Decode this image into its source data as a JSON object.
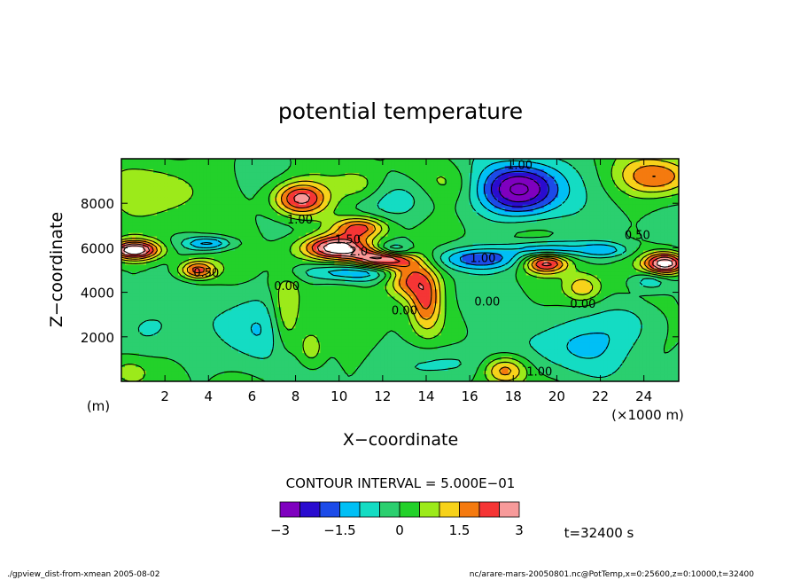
{
  "chart_data": {
    "type": "heatmap",
    "title": "potential temperature",
    "xlabel": "X−coordinate",
    "ylabel": "Z−coordinate",
    "x_unit": "(×1000 m)",
    "y_unit": "(m)",
    "xlim": [
      0,
      25.6
    ],
    "ylim": [
      0,
      10000
    ],
    "x_ticks": [
      2,
      4,
      6,
      8,
      10,
      12,
      14,
      16,
      18,
      20,
      22,
      24
    ],
    "y_ticks": [
      2000,
      4000,
      6000,
      8000
    ],
    "contour_interval_label": "CONTOUR INTERVAL = 5.000E−01",
    "colorbar": {
      "levels": [
        -3,
        -2.5,
        -2,
        -1.5,
        -1,
        -0.5,
        0,
        0.5,
        1,
        1.5,
        2,
        2.5,
        3
      ],
      "colors": [
        "#7f00bf",
        "#2a0ccf",
        "#1c4be8",
        "#00bff5",
        "#14dcc3",
        "#2bcf6f",
        "#23d12a",
        "#9cea1a",
        "#f7d21a",
        "#f47a0f",
        "#f53535",
        "#f79a9a"
      ],
      "tick_labels": [
        "−3",
        "−1.5",
        "0",
        "1.5",
        "3"
      ],
      "tick_values": [
        -3,
        -1.5,
        0,
        1.5,
        3
      ]
    },
    "time_label": "t=32400 s",
    "contour_labels": [
      {
        "text": "1.00",
        "x": 18.3,
        "y": 9550
      },
      {
        "text": "1.00",
        "x": 8.2,
        "y": 7100
      },
      {
        "text": "1.50",
        "x": 10.4,
        "y": 6200
      },
      {
        "text": "2.0",
        "x": 10.9,
        "y": 5650
      },
      {
        "text": "1.00",
        "x": 16.6,
        "y": 5350
      },
      {
        "text": "0.50",
        "x": 3.9,
        "y": 4700
      },
      {
        "text": "0.00",
        "x": 7.6,
        "y": 4100
      },
      {
        "text": "0.00",
        "x": 13.0,
        "y": 3000
      },
      {
        "text": "0.00",
        "x": 16.8,
        "y": 3400
      },
      {
        "text": "0.00",
        "x": 21.2,
        "y": 3300
      },
      {
        "text": "0.50",
        "x": 23.7,
        "y": 6400
      },
      {
        "text": "1.00",
        "x": 19.2,
        "y": 250
      }
    ],
    "features": [
      {
        "x": 18.3,
        "y": 8600,
        "value": -3.2,
        "sx": 1.3,
        "sy": 850
      },
      {
        "x": 16.5,
        "y": 5500,
        "value": -1.8,
        "sx": 1.5,
        "sy": 350
      },
      {
        "x": 19.5,
        "y": 5950,
        "value": -1.6,
        "sx": 1.2,
        "sy": 250
      },
      {
        "x": 4.0,
        "y": 6200,
        "value": -1.8,
        "sx": 0.8,
        "sy": 220
      },
      {
        "x": 10.5,
        "y": 4900,
        "value": -1.6,
        "sx": 1.6,
        "sy": 300
      },
      {
        "x": 12.5,
        "y": 5900,
        "value": -1.6,
        "sx": 0.6,
        "sy": 220
      },
      {
        "x": 22.2,
        "y": 5900,
        "value": -1.3,
        "sx": 0.8,
        "sy": 240
      },
      {
        "x": 24.3,
        "y": 4500,
        "value": -1.1,
        "sx": 0.6,
        "sy": 300
      },
      {
        "x": 6.2,
        "y": 2400,
        "value": -1.0,
        "sx": 1.3,
        "sy": 1200
      },
      {
        "x": 15.0,
        "y": 800,
        "value": -0.9,
        "sx": 1.4,
        "sy": 600
      },
      {
        "x": 20.6,
        "y": 1500,
        "value": -0.9,
        "sx": 1.7,
        "sy": 900
      },
      {
        "x": 23.4,
        "y": 2700,
        "value": -0.8,
        "sx": 1.0,
        "sy": 800
      },
      {
        "x": 1.0,
        "y": 2200,
        "value": -0.8,
        "sx": 1.0,
        "sy": 900
      },
      {
        "x": 13.0,
        "y": 8200,
        "value": -0.9,
        "sx": 1.2,
        "sy": 700
      },
      {
        "x": 8.2,
        "y": 8200,
        "value": 2.9,
        "sx": 0.9,
        "sy": 550
      },
      {
        "x": 11.0,
        "y": 6900,
        "value": 2.4,
        "sx": 0.9,
        "sy": 350
      },
      {
        "x": 9.9,
        "y": 6000,
        "value": 3.4,
        "sx": 1.1,
        "sy": 380
      },
      {
        "x": 11.9,
        "y": 5500,
        "value": 3.2,
        "sx": 0.9,
        "sy": 300
      },
      {
        "x": 13.2,
        "y": 4700,
        "value": 2.3,
        "sx": 0.8,
        "sy": 700
      },
      {
        "x": 14.0,
        "y": 3500,
        "value": 1.8,
        "sx": 0.5,
        "sy": 900
      },
      {
        "x": 0.6,
        "y": 5900,
        "value": 3.6,
        "sx": 0.8,
        "sy": 300
      },
      {
        "x": 3.5,
        "y": 5000,
        "value": 2.4,
        "sx": 0.6,
        "sy": 300
      },
      {
        "x": 19.5,
        "y": 5300,
        "value": 2.6,
        "sx": 0.7,
        "sy": 300
      },
      {
        "x": 25.0,
        "y": 5300,
        "value": 3.6,
        "sx": 0.7,
        "sy": 350
      },
      {
        "x": 24.6,
        "y": 9200,
        "value": 1.9,
        "sx": 1.2,
        "sy": 600
      },
      {
        "x": 7.6,
        "y": 3000,
        "value": 1.5,
        "sx": 0.5,
        "sy": 1300
      },
      {
        "x": 8.7,
        "y": 1500,
        "value": 1.1,
        "sx": 0.4,
        "sy": 600
      },
      {
        "x": 17.6,
        "y": 500,
        "value": 1.9,
        "sx": 0.7,
        "sy": 450
      },
      {
        "x": 21.2,
        "y": 4200,
        "value": 1.4,
        "sx": 0.6,
        "sy": 450
      },
      {
        "x": 2.0,
        "y": 8700,
        "value": 0.9,
        "sx": 1.4,
        "sy": 900
      },
      {
        "x": 11.0,
        "y": 8800,
        "value": 0.8,
        "sx": 0.8,
        "sy": 500
      },
      {
        "x": 15.0,
        "y": 8900,
        "value": 0.6,
        "sx": 0.9,
        "sy": 600
      },
      {
        "x": 0.3,
        "y": 400,
        "value": 0.7,
        "sx": 0.6,
        "sy": 400
      }
    ]
  },
  "footer": {
    "left": "./gpview_dist-from-xmean 2005-08-02",
    "right": "nc/arare-mars-20050801.nc@PotTemp,x=0:25600,z=0:10000,t=32400"
  }
}
